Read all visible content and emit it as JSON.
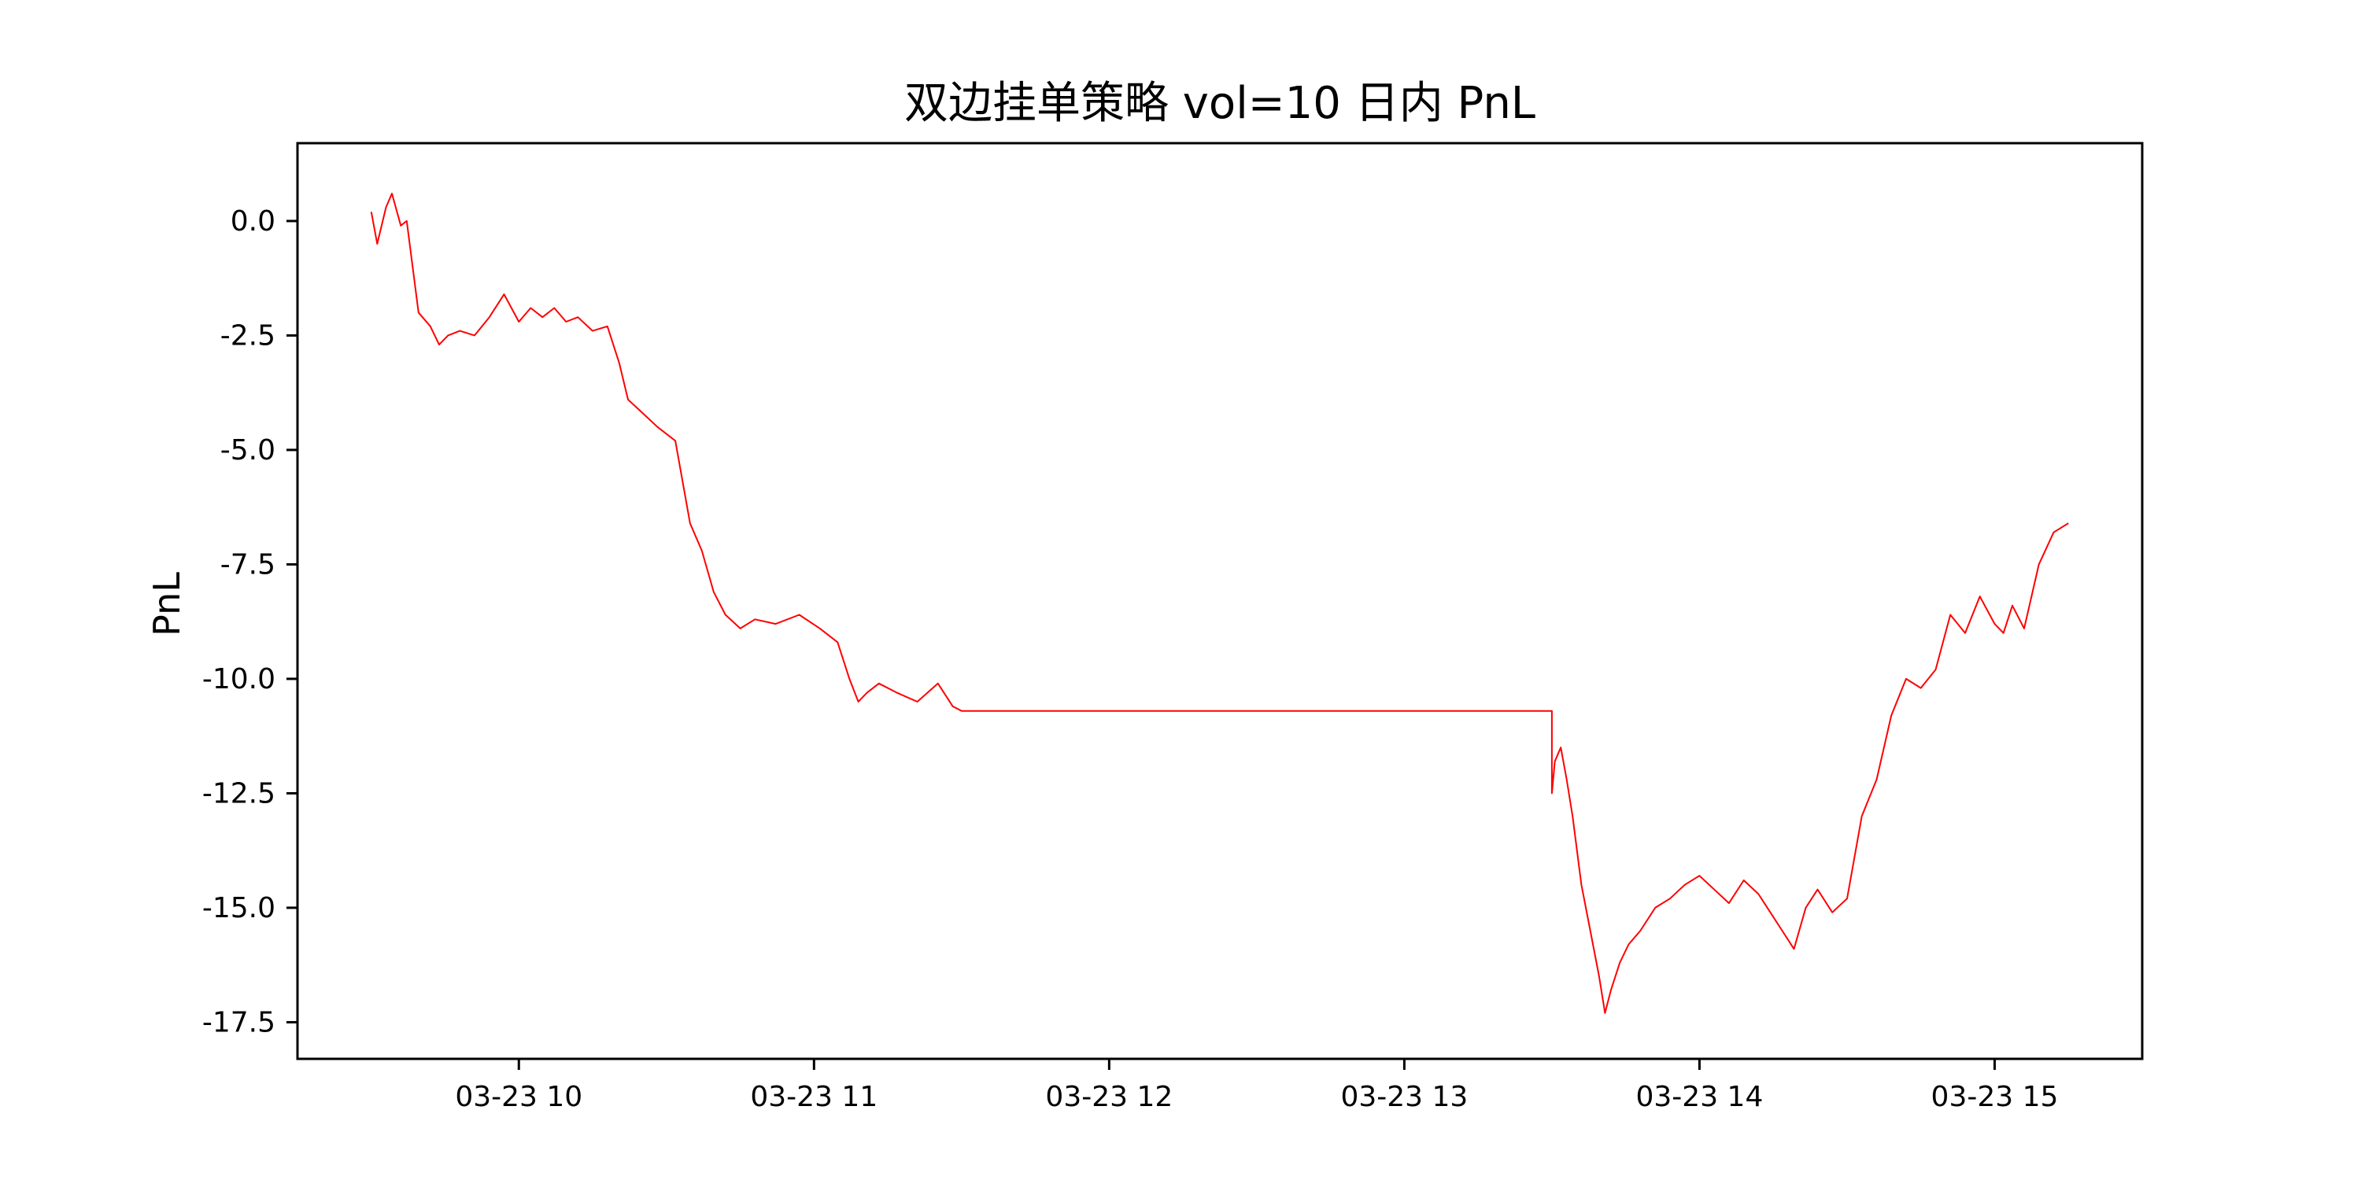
{
  "chart_data": {
    "type": "line",
    "title": "双边挂单策略  vol=10 日内 PnL",
    "xlabel": "",
    "ylabel": "PnL",
    "x_tick_labels": [
      "03-23 10",
      "03-23 11",
      "03-23 12",
      "03-23 13",
      "03-23 14",
      "03-23 15"
    ],
    "x_ticks_hours": [
      10,
      11,
      12,
      13,
      14,
      15
    ],
    "y_tick_labels": [
      "0.0",
      "-2.5",
      "-5.0",
      "-7.5",
      "-10.0",
      "-12.5",
      "-15.0",
      "-17.5"
    ],
    "y_ticks": [
      0.0,
      -2.5,
      -5.0,
      -7.5,
      -10.0,
      -12.5,
      -15.0,
      -17.5
    ],
    "xlim_hours": [
      9.25,
      15.5
    ],
    "ylim": [
      -18.3,
      1.7
    ],
    "grid": false,
    "colors": {
      "line": "#ff0000",
      "axes": "#000000",
      "background": "#ffffff"
    },
    "series": [
      {
        "x_hours": [
          9.5,
          9.52,
          9.55,
          9.57,
          9.6,
          9.62,
          9.64,
          9.66,
          9.7,
          9.73,
          9.76,
          9.8,
          9.85,
          9.9,
          9.95,
          10.0,
          10.04,
          10.08,
          10.12,
          10.16,
          10.2,
          10.25,
          10.3,
          10.34,
          10.37,
          10.42,
          10.47,
          10.53,
          10.58,
          10.62,
          10.66,
          10.7,
          10.75,
          10.8,
          10.87,
          10.95,
          11.02,
          11.08,
          11.12,
          11.15,
          11.18,
          11.22,
          11.28,
          11.35,
          11.42,
          11.47,
          11.5,
          13.5,
          13.5,
          13.51,
          13.53,
          13.55,
          13.57,
          13.6,
          13.63,
          13.66,
          13.68,
          13.7,
          13.73,
          13.76,
          13.8,
          13.85,
          13.9,
          13.95,
          14.0,
          14.05,
          14.1,
          14.15,
          14.2,
          14.25,
          14.28,
          14.32,
          14.36,
          14.4,
          14.45,
          14.5,
          14.55,
          14.6,
          14.65,
          14.7,
          14.75,
          14.8,
          14.85,
          14.9,
          14.95,
          15.0,
          15.03,
          15.06,
          15.1,
          15.15,
          15.2,
          15.25
        ],
        "y": [
          0.2,
          -0.5,
          0.3,
          0.6,
          -0.1,
          0.0,
          -1.0,
          -2.0,
          -2.3,
          -2.7,
          -2.5,
          -2.4,
          -2.5,
          -2.1,
          -1.6,
          -2.2,
          -1.9,
          -2.1,
          -1.9,
          -2.2,
          -2.1,
          -2.4,
          -2.3,
          -3.1,
          -3.9,
          -4.2,
          -4.5,
          -4.8,
          -6.6,
          -7.2,
          -8.1,
          -8.6,
          -8.9,
          -8.7,
          -8.8,
          -8.6,
          -8.9,
          -9.2,
          -10.0,
          -10.5,
          -10.3,
          -10.1,
          -10.3,
          -10.5,
          -10.1,
          -10.6,
          -10.7,
          -10.7,
          -12.5,
          -11.8,
          -11.5,
          -12.2,
          -13.0,
          -14.5,
          -15.5,
          -16.5,
          -17.3,
          -16.8,
          -16.2,
          -15.8,
          -15.5,
          -15.0,
          -14.8,
          -14.5,
          -14.3,
          -14.6,
          -14.9,
          -14.4,
          -14.7,
          -15.2,
          -15.5,
          -15.9,
          -15.0,
          -14.6,
          -15.1,
          -14.8,
          -13.0,
          -12.2,
          -10.8,
          -10.0,
          -10.2,
          -9.8,
          -8.6,
          -9.0,
          -8.2,
          -8.8,
          -9.0,
          -8.4,
          -8.9,
          -7.5,
          -6.8,
          -6.6
        ]
      }
    ]
  }
}
